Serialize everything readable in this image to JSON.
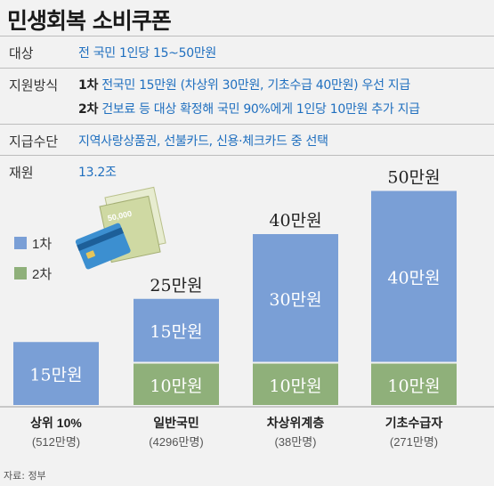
{
  "header": {
    "title": "민생회복 소비쿠폰"
  },
  "info": {
    "target_label": "대상",
    "target_value": "전 국민 1인당 15~50만원",
    "method_label": "지원방식",
    "method_line1_num": "1차",
    "method_line1_text": "전국민 15만원 (차상위 30만원, 기초수급 40만원) 우선 지급",
    "method_line2_num": "2차",
    "method_line2_text": "건보료 등 대상 확정해 국민 90%에게 1인당 10만원 추가 지급",
    "means_label": "지급수단",
    "means_value": "지역사랑상품권, 선불카드, 신용·체크카드 중 선택",
    "budget_label": "재원",
    "budget_value": "13.2조"
  },
  "chart_data": {
    "type": "bar",
    "stacked": true,
    "unit": "만원",
    "categories": [
      "상위 10%",
      "일반국민",
      "차상위계층",
      "기초수급자"
    ],
    "sublabels": [
      "(512만명)",
      "(4296만명)",
      "(38만명)",
      "(271만명)"
    ],
    "series": [
      {
        "name": "1차",
        "color": "#7a9fd6",
        "values": [
          15,
          15,
          30,
          40
        ],
        "labels": [
          "15만원",
          "15만원",
          "30만원",
          "40만원"
        ]
      },
      {
        "name": "2차",
        "color": "#8fb07a",
        "values": [
          0,
          10,
          10,
          10
        ],
        "labels": [
          "",
          "10만원",
          "10만원",
          "10만원"
        ]
      }
    ],
    "totals": [
      "",
      "25만원",
      "40만원",
      "50만원"
    ],
    "legend_position": "left"
  },
  "illustration": {
    "card_note": "50,000"
  },
  "footer": {
    "source": "자료: 정부"
  }
}
